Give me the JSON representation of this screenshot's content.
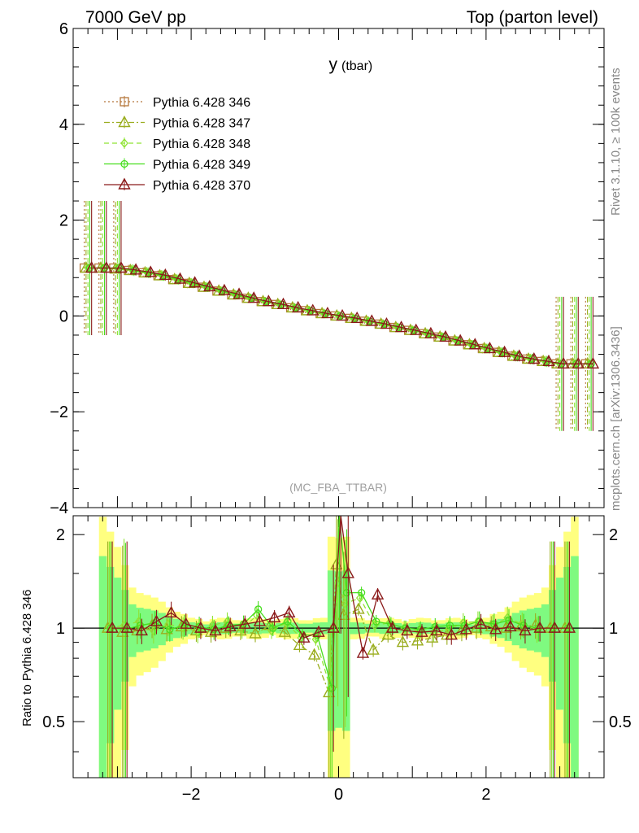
{
  "header": {
    "left": "7000 GeV pp",
    "right": "Top (parton level)"
  },
  "plot_title": {
    "main": "y",
    "sub": "(tbar)"
  },
  "watermark": "(MC_FBA_TTBAR)",
  "side_labels": {
    "rivet": "Rivet 3.1.10, ≥ 100k events",
    "mcplots": "mcplots.cern.ch [arXiv:1306.3436]"
  },
  "ratio_ylabel": "Ratio to Pythia 6.428 346",
  "legend": [
    {
      "name": "Pythia 6.428 346",
      "color": "#b5763a",
      "marker": "square",
      "dash": "2,3"
    },
    {
      "name": "Pythia 6.428 347",
      "color": "#9aad1e",
      "marker": "triangle",
      "dash": "7,3,2,3"
    },
    {
      "name": "Pythia 6.428 348",
      "color": "#8fe334",
      "marker": "diamond",
      "dash": "6,4"
    },
    {
      "name": "Pythia 6.428 349",
      "color": "#47de1f",
      "marker": "circle",
      "dash": ""
    },
    {
      "name": "Pythia 6.428 370",
      "color": "#8b1a1a",
      "marker": "triangle",
      "dash": ""
    }
  ],
  "chart_data": [
    {
      "type": "line",
      "title": "y (tbar)",
      "xlim": [
        -3.6,
        3.6
      ],
      "ylim": [
        -4,
        6
      ],
      "yticks": [
        -4,
        -2,
        0,
        2,
        4,
        6
      ],
      "ytick_labels": [
        "−4",
        "−2",
        "0",
        "2",
        "4",
        "6"
      ],
      "description_of_series": "All five series follow y = -0.29*x within |x|<2.8 and plateau at +1 (x<-2.8) and -1 (x>2.8)",
      "x": [
        -3.4,
        -3.2,
        -3.0,
        -2.8,
        -2.6,
        -2.4,
        -2.2,
        -2.0,
        -1.8,
        -1.6,
        -1.4,
        -1.2,
        -1.0,
        -0.8,
        -0.6,
        -0.4,
        -0.2,
        0.0,
        0.2,
        0.4,
        0.6,
        0.8,
        1.0,
        1.2,
        1.4,
        1.6,
        1.8,
        2.0,
        2.2,
        2.4,
        2.6,
        2.8,
        3.0,
        3.2,
        3.4
      ],
      "series": [
        {
          "name": "Pythia 6.428 346",
          "values": [
            1.0,
            1.0,
            1.0,
            0.95,
            0.9,
            0.84,
            0.76,
            0.68,
            0.6,
            0.52,
            0.44,
            0.37,
            0.3,
            0.24,
            0.17,
            0.11,
            0.05,
            0.0,
            -0.05,
            -0.11,
            -0.17,
            -0.24,
            -0.3,
            -0.37,
            -0.44,
            -0.52,
            -0.6,
            -0.68,
            -0.76,
            -0.84,
            -0.9,
            -0.95,
            -1.0,
            -1.0,
            -1.0
          ]
        },
        {
          "name": "Pythia 6.428 347",
          "values": [
            1.0,
            1.0,
            0.98,
            0.95,
            0.9,
            0.84,
            0.76,
            0.68,
            0.6,
            0.52,
            0.44,
            0.37,
            0.3,
            0.24,
            0.17,
            0.11,
            0.05,
            0.0,
            -0.05,
            -0.11,
            -0.17,
            -0.24,
            -0.3,
            -0.37,
            -0.44,
            -0.52,
            -0.6,
            -0.68,
            -0.76,
            -0.84,
            -0.9,
            -0.95,
            -1.0,
            -1.0,
            -1.0
          ]
        },
        {
          "name": "Pythia 6.428 348",
          "values": [
            1.0,
            1.0,
            1.0,
            0.96,
            0.91,
            0.85,
            0.77,
            0.69,
            0.61,
            0.52,
            0.44,
            0.37,
            0.3,
            0.24,
            0.17,
            0.11,
            0.05,
            0.0,
            -0.05,
            -0.11,
            -0.17,
            -0.24,
            -0.3,
            -0.37,
            -0.44,
            -0.52,
            -0.6,
            -0.68,
            -0.76,
            -0.84,
            -0.9,
            -0.95,
            -1.0,
            -1.0,
            -1.0
          ]
        },
        {
          "name": "Pythia 6.428 349",
          "values": [
            1.0,
            1.0,
            1.0,
            0.95,
            0.9,
            0.84,
            0.76,
            0.68,
            0.6,
            0.52,
            0.44,
            0.37,
            0.3,
            0.24,
            0.17,
            0.11,
            0.05,
            0.0,
            -0.05,
            -0.11,
            -0.17,
            -0.24,
            -0.3,
            -0.37,
            -0.44,
            -0.52,
            -0.6,
            -0.68,
            -0.76,
            -0.84,
            -0.9,
            -0.95,
            -1.0,
            -1.0,
            -1.0
          ]
        },
        {
          "name": "Pythia 6.428 370",
          "values": [
            1.0,
            1.0,
            1.0,
            0.96,
            0.91,
            0.85,
            0.77,
            0.69,
            0.61,
            0.53,
            0.45,
            0.37,
            0.3,
            0.24,
            0.17,
            0.11,
            0.05,
            0.0,
            -0.05,
            -0.11,
            -0.17,
            -0.24,
            -0.3,
            -0.37,
            -0.44,
            -0.52,
            -0.6,
            -0.68,
            -0.76,
            -0.84,
            -0.9,
            -0.95,
            -1.0,
            -1.0,
            -1.0
          ]
        }
      ]
    },
    {
      "type": "line",
      "title": "",
      "ylabel": "Ratio to Pythia 6.428 346",
      "xlim": [
        -3.6,
        3.6
      ],
      "ylim": [
        0.33,
        2.3
      ],
      "ylog": true,
      "yticks": [
        0.5,
        1,
        2
      ],
      "ytick_labels": [
        "0.5",
        "1",
        "2"
      ],
      "xticks": [
        -2,
        0,
        2
      ],
      "xtick_labels": [
        "−2",
        "0",
        "2"
      ],
      "reference_line": 1,
      "bands": [
        {
          "color": "#ffff80",
          "description": "outer uncertainty band"
        },
        {
          "color": "#7ffa80",
          "description": "inner uncertainty band"
        }
      ],
      "x": [
        -3.1,
        -2.9,
        -2.7,
        -2.5,
        -2.3,
        -2.1,
        -1.9,
        -1.7,
        -1.5,
        -1.3,
        -1.1,
        -0.9,
        -0.7,
        -0.5,
        -0.3,
        -0.1,
        0.0,
        0.1,
        0.3,
        0.5,
        0.7,
        0.9,
        1.1,
        1.3,
        1.5,
        1.7,
        1.9,
        2.1,
        2.3,
        2.5,
        2.7,
        2.9,
        3.1
      ],
      "series": [
        {
          "name": "Pythia 6.428 347",
          "values": [
            1.0,
            0.97,
            0.98,
            1.02,
            0.99,
            1.01,
            0.98,
            0.97,
            1.0,
            0.98,
            0.96,
            1.02,
            0.97,
            0.88,
            0.82,
            0.62,
            1.6,
            1.1,
            1.15,
            0.85,
            0.95,
            0.9,
            0.91,
            0.93,
            0.95,
            0.98,
            1.0,
            1.01,
            1.0,
            1.01,
            1.02,
            1.0,
            1.0
          ]
        },
        {
          "name": "Pythia 6.428 348",
          "values": [
            1.0,
            1.02,
            1.05,
            0.98,
            1.03,
            1.0,
            0.97,
            1.02,
            1.05,
            0.99,
            1.1,
            0.98,
            1.04,
            0.93,
            0.92,
            0.64,
            1.4,
            1.2,
            1.25,
            1.02,
            1.04,
            1.0,
            0.98,
            0.97,
            0.99,
            1.04,
            1.05,
            1.02,
            1.08,
            1.03,
            0.99,
            1.0,
            1.0
          ]
        },
        {
          "name": "Pythia 6.428 349",
          "values": [
            1.0,
            0.99,
            1.02,
            1.04,
            0.99,
            1.02,
            1.01,
            0.99,
            1.02,
            1.03,
            1.15,
            1.0,
            1.05,
            0.95,
            0.95,
            0.64,
            2.4,
            1.3,
            1.3,
            1.05,
            1.03,
            1.0,
            0.99,
            1.01,
            1.02,
            1.02,
            1.05,
            1.03,
            1.06,
            1.02,
            1.0,
            1.0,
            1.0
          ]
        },
        {
          "name": "Pythia 6.428 370",
          "values": [
            1.0,
            1.0,
            0.98,
            1.05,
            1.12,
            1.03,
            1.0,
            0.98,
            1.01,
            1.03,
            1.05,
            1.08,
            1.12,
            0.93,
            0.97,
            1.0,
            2.4,
            1.5,
            0.83,
            1.28,
            1.0,
            0.98,
            0.97,
            0.98,
            0.95,
            0.99,
            1.03,
            0.99,
            1.01,
            0.98,
            1.0,
            1.0,
            1.0
          ]
        }
      ]
    }
  ]
}
